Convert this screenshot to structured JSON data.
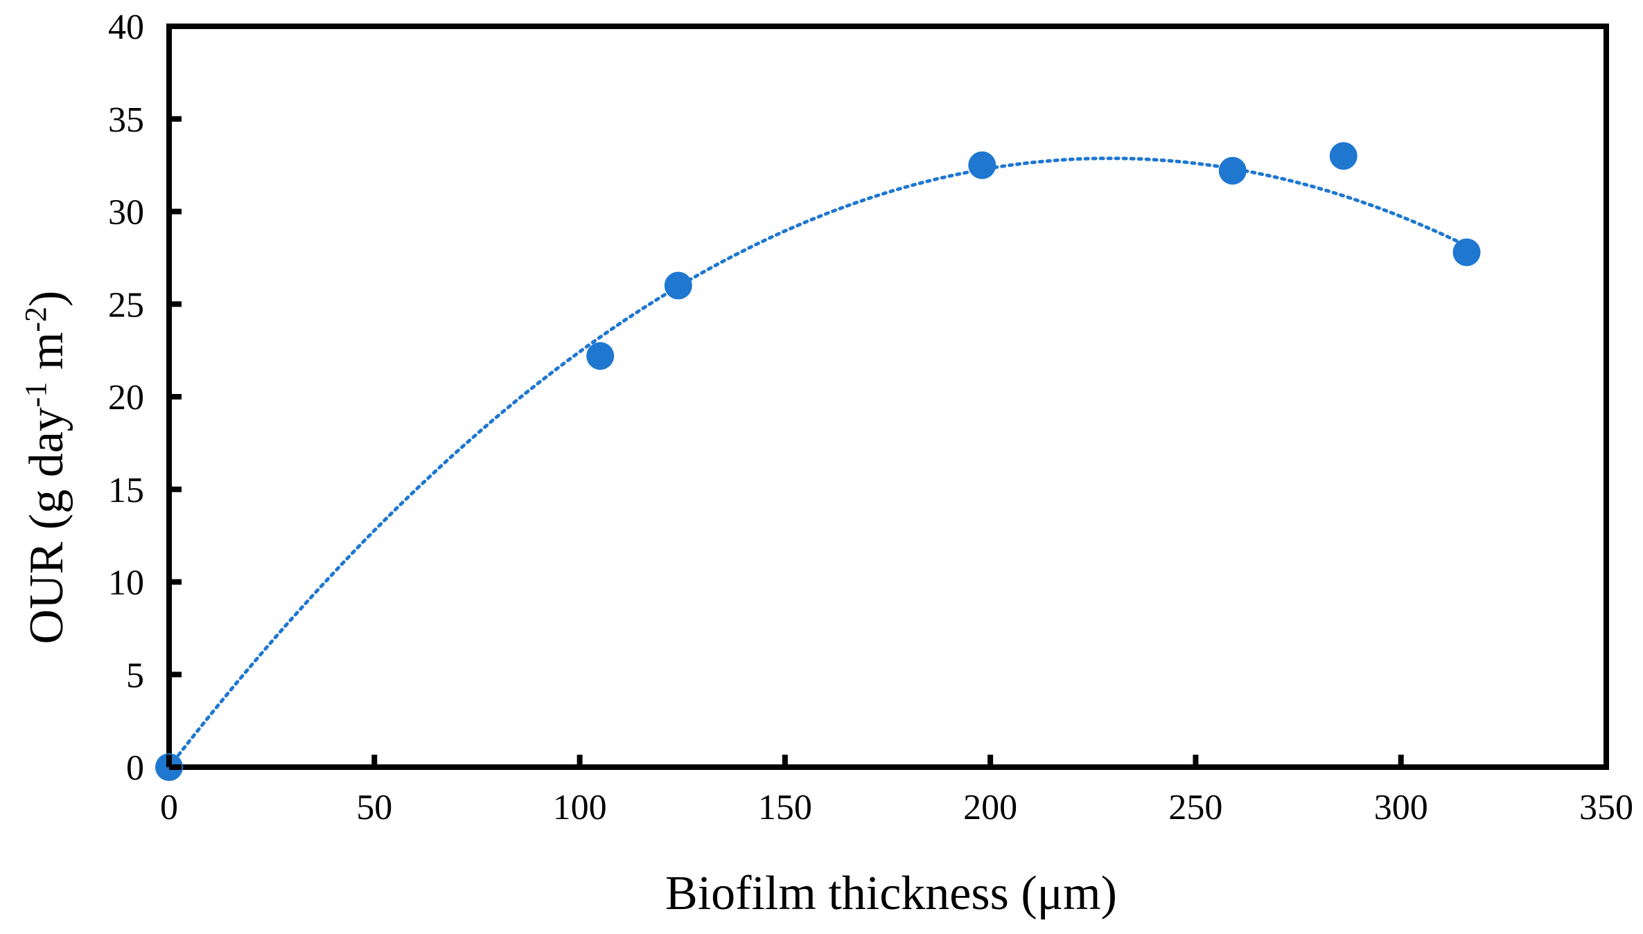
{
  "chart_data": {
    "type": "scatter",
    "xlabel": "Biofilm thickness (μm)",
    "ylabel": {
      "prefix": "OUR (g day",
      "exp1": "-1",
      "middle": " m",
      "exp2": "-2",
      "suffix": ")"
    },
    "xlim": [
      0,
      350
    ],
    "ylim": [
      0,
      40
    ],
    "x_ticks": [
      0,
      50,
      100,
      150,
      200,
      250,
      300,
      350
    ],
    "y_ticks": [
      0,
      5,
      10,
      15,
      20,
      25,
      30,
      35,
      40
    ],
    "grid": false,
    "legend": "none",
    "series": [
      {
        "x": [
          0,
          105,
          124,
          198,
          259,
          286,
          316
        ],
        "y": [
          0,
          22.2,
          26.0,
          32.5,
          32.2,
          33.0,
          27.8
        ],
        "color": "#1f77d0",
        "marker": "circle"
      }
    ],
    "trendline": {
      "type": "polynomial-2",
      "coefficients": [
        0,
        0.2869,
        -0.000626
      ],
      "x_range": [
        0,
        316
      ],
      "color": "#1f77d0",
      "style": "dotted"
    }
  }
}
